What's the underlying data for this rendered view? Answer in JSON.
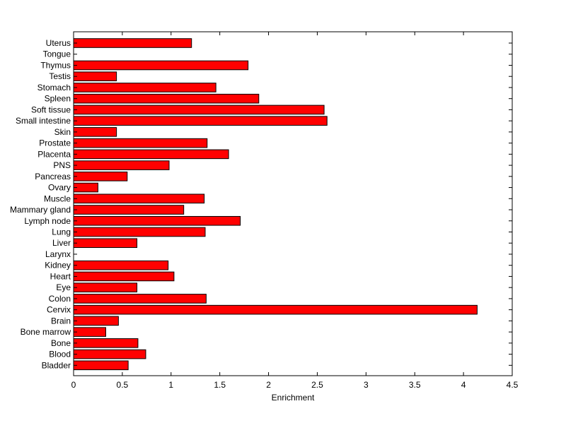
{
  "chart_data": {
    "type": "bar",
    "orientation": "horizontal",
    "title": "",
    "xlabel": "Enrichment",
    "ylabel": "",
    "xlim": [
      0,
      4.5
    ],
    "xticks": [
      0,
      0.5,
      1,
      1.5,
      2,
      2.5,
      3,
      3.5,
      4,
      4.5
    ],
    "xtick_labels": [
      "0",
      "0.5",
      "1",
      "1.5",
      "2",
      "2.5",
      "3",
      "3.5",
      "4",
      "4.5"
    ],
    "grid": false,
    "legend": "none",
    "bar_color": "#ff0000",
    "edge_color": "#000000",
    "categories": [
      "Uterus",
      "Tongue",
      "Thymus",
      "Testis",
      "Stomach",
      "Spleen",
      "Soft tissue",
      "Small intestine",
      "Skin",
      "Prostate",
      "Placenta",
      "PNS",
      "Pancreas",
      "Ovary",
      "Muscle",
      "Mammary gland",
      "Lymph node",
      "Lung",
      "Liver",
      "Larynx",
      "Kidney",
      "Heart",
      "Eye",
      "Colon",
      "Cervix",
      "Brain",
      "Bone marrow",
      "Bone",
      "Blood",
      "Bladder"
    ],
    "values": [
      1.21,
      0,
      1.79,
      0.44,
      1.46,
      1.9,
      2.57,
      2.6,
      0.44,
      1.37,
      1.59,
      0.98,
      0.55,
      0.25,
      1.34,
      1.13,
      1.71,
      1.35,
      0.65,
      0,
      0.97,
      1.03,
      0.65,
      1.36,
      4.14,
      0.46,
      0.33,
      0.66,
      0.74,
      0.56
    ]
  }
}
